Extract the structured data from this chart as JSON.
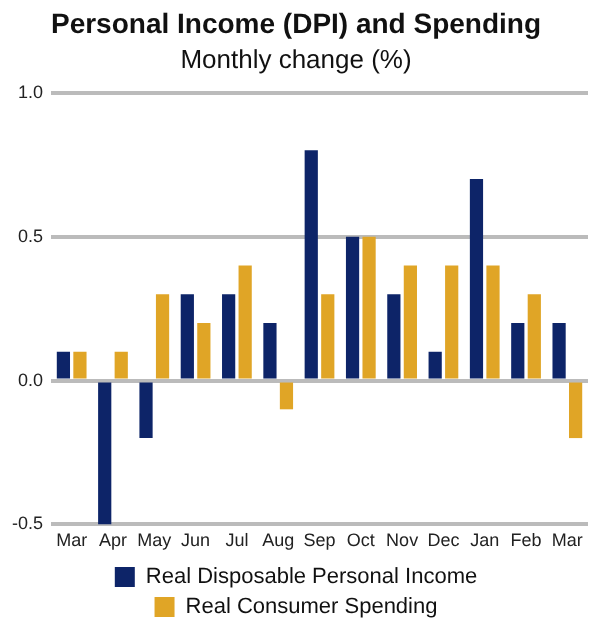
{
  "chart_data": {
    "type": "bar",
    "title": "Personal Income (DPI) and Spending",
    "subtitle": "Monthly change (%)",
    "categories": [
      "Mar",
      "Apr",
      "May",
      "Jun",
      "Jul",
      "Aug",
      "Sep",
      "Oct",
      "Nov",
      "Dec",
      "Jan",
      "Feb",
      "Mar"
    ],
    "series": [
      {
        "name": "Real Disposable Personal Income",
        "color": "#0d2468",
        "values": [
          0.1,
          -0.5,
          -0.2,
          0.3,
          0.3,
          0.2,
          0.8,
          0.5,
          0.3,
          0.1,
          0.7,
          0.2,
          0.2
        ]
      },
      {
        "name": "Real Consumer Spending",
        "color": "#e0a526",
        "values": [
          0.1,
          0.1,
          0.3,
          0.2,
          0.4,
          -0.1,
          0.3,
          0.5,
          0.4,
          0.4,
          0.4,
          0.3,
          -0.2
        ]
      }
    ],
    "ylim": [
      -0.5,
      1.0
    ],
    "yticks": [
      {
        "value": -0.5,
        "label": "-0.5"
      },
      {
        "value": 0,
        "label": "0.0"
      },
      {
        "value": 0.5,
        "label": "0.5"
      },
      {
        "value": 1,
        "label": "1.0"
      }
    ],
    "grid": "y",
    "legend": "bottom"
  }
}
